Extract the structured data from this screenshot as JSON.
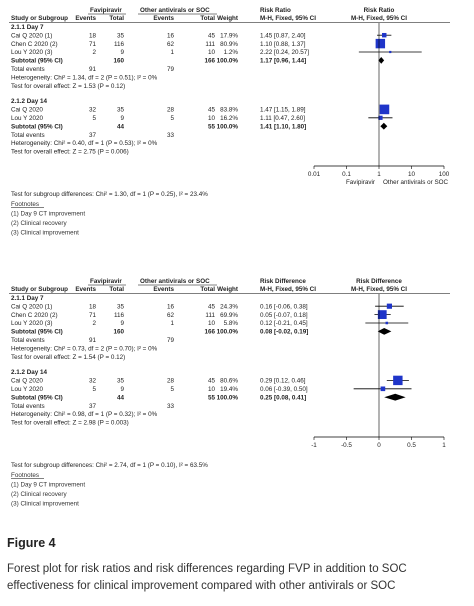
{
  "chart_data": [
    {
      "type": "forest",
      "columns": {
        "study": "Study or Subgroup",
        "group_exp": "Favipiravir",
        "group_ctrl": "Other antivirals or SOC",
        "events": "Events",
        "total": "Total",
        "weight": "Weight",
        "effect_main": "Risk Ratio",
        "effect_sub": "M-H, Fixed, 95% CI",
        "plot_main": "Risk Ratio",
        "plot_sub": "M-H, Fixed, 95% CI"
      },
      "scale": "log",
      "xlim": [
        0.01,
        100
      ],
      "null_value": 1,
      "ticks": [
        {
          "v": 0.01,
          "label": "0.01"
        },
        {
          "v": 0.1,
          "label": "0.1"
        },
        {
          "v": 1,
          "label": "1"
        },
        {
          "v": 10,
          "label": "10"
        },
        {
          "v": 100,
          "label": "100"
        }
      ],
      "favours_left": "Favipiravir",
      "favours_right": "Other antivirals or SOC",
      "subgroups": [
        {
          "title": "2.1.1 Day 7",
          "studies": [
            {
              "name": "Cai Q 2020 (1)",
              "e1": "18",
              "n1": "35",
              "e2": "16",
              "n2": "45",
              "weight": "17.9%",
              "ci_text": "1.45 [0.87, 2.40]",
              "est": 1.45,
              "lo": 0.87,
              "hi": 2.4,
              "w": 17.9
            },
            {
              "name": "Chen C 2020 (2)",
              "e1": "71",
              "n1": "116",
              "e2": "62",
              "n2": "111",
              "weight": "80.9%",
              "ci_text": "1.10 [0.88, 1.37]",
              "est": 1.1,
              "lo": 0.88,
              "hi": 1.37,
              "w": 80.9
            },
            {
              "name": "Lou Y 2020 (3)",
              "e1": "2",
              "n1": "9",
              "e2": "1",
              "n2": "10",
              "weight": "1.2%",
              "ci_text": "2.22 [0.24, 20.57]",
              "est": 2.22,
              "lo": 0.24,
              "hi": 20.57,
              "w": 1.2
            }
          ],
          "subtotal": {
            "label": "Subtotal (95% CI)",
            "n1": "160",
            "n2": "166",
            "weight": "100.0%",
            "ci_text": "1.17 [0.96, 1.44]",
            "est": 1.17,
            "lo": 0.96,
            "hi": 1.44
          },
          "total_events": {
            "label": "Total events",
            "e1": "91",
            "e2": "79"
          },
          "heterogeneity": "Heterogeneity: Chi² = 1.34, df = 2 (P = 0.51); I² = 0%",
          "overall": "Test for overall effect: Z = 1.53 (P = 0.12)"
        },
        {
          "title": "2.1.2 Day 14",
          "studies": [
            {
              "name": "Cai Q 2020",
              "e1": "32",
              "n1": "35",
              "e2": "28",
              "n2": "45",
              "weight": "83.8%",
              "ci_text": "1.47 [1.15, 1.89]",
              "est": 1.47,
              "lo": 1.15,
              "hi": 1.89,
              "w": 83.8
            },
            {
              "name": "Lou Y 2020",
              "e1": "5",
              "n1": "9",
              "e2": "5",
              "n2": "10",
              "weight": "16.2%",
              "ci_text": "1.11 [0.47, 2.60]",
              "est": 1.11,
              "lo": 0.47,
              "hi": 2.6,
              "w": 16.2
            }
          ],
          "subtotal": {
            "label": "Subtotal (95% CI)",
            "n1": "44",
            "n2": "55",
            "weight": "100.0%",
            "ci_text": "1.41 [1.10, 1.80]",
            "est": 1.41,
            "lo": 1.1,
            "hi": 1.8
          },
          "total_events": {
            "label": "Total events",
            "e1": "37",
            "e2": "33"
          },
          "heterogeneity": "Heterogeneity: Chi² = 0.40, df = 1 (P = 0.53); I² = 0%",
          "overall": "Test for overall effect: Z = 2.75 (P = 0.006)"
        }
      ],
      "subgroup_test": "Test for subgroup differences: Chi² = 1.30, df = 1 (P = 0.25), I² = 23.4%",
      "footnotes": [
        "Footnotes",
        "(1) Day 9 CT improvement",
        "(2) Clinical recovery",
        "(3) Clinical improvement"
      ]
    },
    {
      "type": "forest",
      "columns": {
        "study": "Study or Subgroup",
        "group_exp": "Favipiravir",
        "group_ctrl": "Other antivirals or SOC",
        "events": "Events",
        "total": "Total",
        "weight": "Weight",
        "effect_main": "Risk Difference",
        "effect_sub": "M-H, Fixed, 95% CI",
        "plot_main": "Risk Difference",
        "plot_sub": "M-H, Fixed, 95% CI"
      },
      "scale": "linear",
      "xlim": [
        -1,
        1
      ],
      "null_value": 0,
      "ticks": [
        {
          "v": -1,
          "label": "-1"
        },
        {
          "v": -0.5,
          "label": "-0.5"
        },
        {
          "v": 0,
          "label": "0"
        },
        {
          "v": 0.5,
          "label": "0.5"
        },
        {
          "v": 1,
          "label": "1"
        }
      ],
      "favours_left": "",
      "favours_right": "",
      "subgroups": [
        {
          "title": "2.1.1 Day 7",
          "studies": [
            {
              "name": "Cai Q 2020 (1)",
              "e1": "18",
              "n1": "35",
              "e2": "16",
              "n2": "45",
              "weight": "24.3%",
              "ci_text": "0.16 [-0.06, 0.38]",
              "est": 0.16,
              "lo": -0.06,
              "hi": 0.38,
              "w": 24.3
            },
            {
              "name": "Chen C 2020 (2)",
              "e1": "71",
              "n1": "116",
              "e2": "62",
              "n2": "111",
              "weight": "69.9%",
              "ci_text": "0.05 [-0.07, 0.18]",
              "est": 0.05,
              "lo": -0.07,
              "hi": 0.18,
              "w": 69.9
            },
            {
              "name": "Lou Y 2020 (3)",
              "e1": "2",
              "n1": "9",
              "e2": "1",
              "n2": "10",
              "weight": "5.8%",
              "ci_text": "0.12 [-0.21, 0.45]",
              "est": 0.12,
              "lo": -0.21,
              "hi": 0.45,
              "w": 5.8
            }
          ],
          "subtotal": {
            "label": "Subtotal (95% CI)",
            "n1": "160",
            "n2": "166",
            "weight": "100.0%",
            "ci_text": "0.08 [-0.02, 0.19]",
            "est": 0.08,
            "lo": -0.02,
            "hi": 0.19
          },
          "total_events": {
            "label": "Total events",
            "e1": "91",
            "e2": "79"
          },
          "heterogeneity": "Heterogeneity: Chi² = 0.73, df = 2 (P = 0.70); I² = 0%",
          "overall": "Test for overall effect: Z = 1.54 (P = 0.12)"
        },
        {
          "title": "2.1.2 Day 14",
          "studies": [
            {
              "name": "Cai Q 2020",
              "e1": "32",
              "n1": "35",
              "e2": "28",
              "n2": "45",
              "weight": "80.6%",
              "ci_text": "0.29 [0.12, 0.46]",
              "est": 0.29,
              "lo": 0.12,
              "hi": 0.46,
              "w": 80.6
            },
            {
              "name": "Lou Y 2020",
              "e1": "5",
              "n1": "9",
              "e2": "5",
              "n2": "10",
              "weight": "19.4%",
              "ci_text": "0.06 [-0.39, 0.50]",
              "est": 0.06,
              "lo": -0.39,
              "hi": 0.5,
              "w": 19.4
            }
          ],
          "subtotal": {
            "label": "Subtotal (95% CI)",
            "n1": "44",
            "n2": "55",
            "weight": "100.0%",
            "ci_text": "0.25 [0.08, 0.41]",
            "est": 0.25,
            "lo": 0.08,
            "hi": 0.41
          },
          "total_events": {
            "label": "Total events",
            "e1": "37",
            "e2": "33"
          },
          "heterogeneity": "Heterogeneity: Chi² = 0.98, df = 1 (P = 0.32); I² = 0%",
          "overall": "Test for overall effect: Z = 2.98 (P = 0.003)"
        }
      ],
      "subgroup_test": "Test for subgroup differences: Chi² = 2.74, df = 1 (P = 0.10), I² = 63.5%",
      "footnotes": [
        "Footnotes",
        "(1) Day 9 CT improvement",
        "(2) Clinical recovery",
        "(3) Clinical improvement"
      ]
    }
  ],
  "colors": {
    "marker": "#1f35c9",
    "marker_light": "#7a86e0",
    "diamond": "#000000",
    "text": "#222222",
    "rule": "#888888"
  },
  "caption": {
    "title": "Figure 4",
    "body": "Forest plot for risk ratios and risk differences regarding FVP in addition to SOC effectiveness for clinical improvement compared with other antivirals or SOC"
  }
}
